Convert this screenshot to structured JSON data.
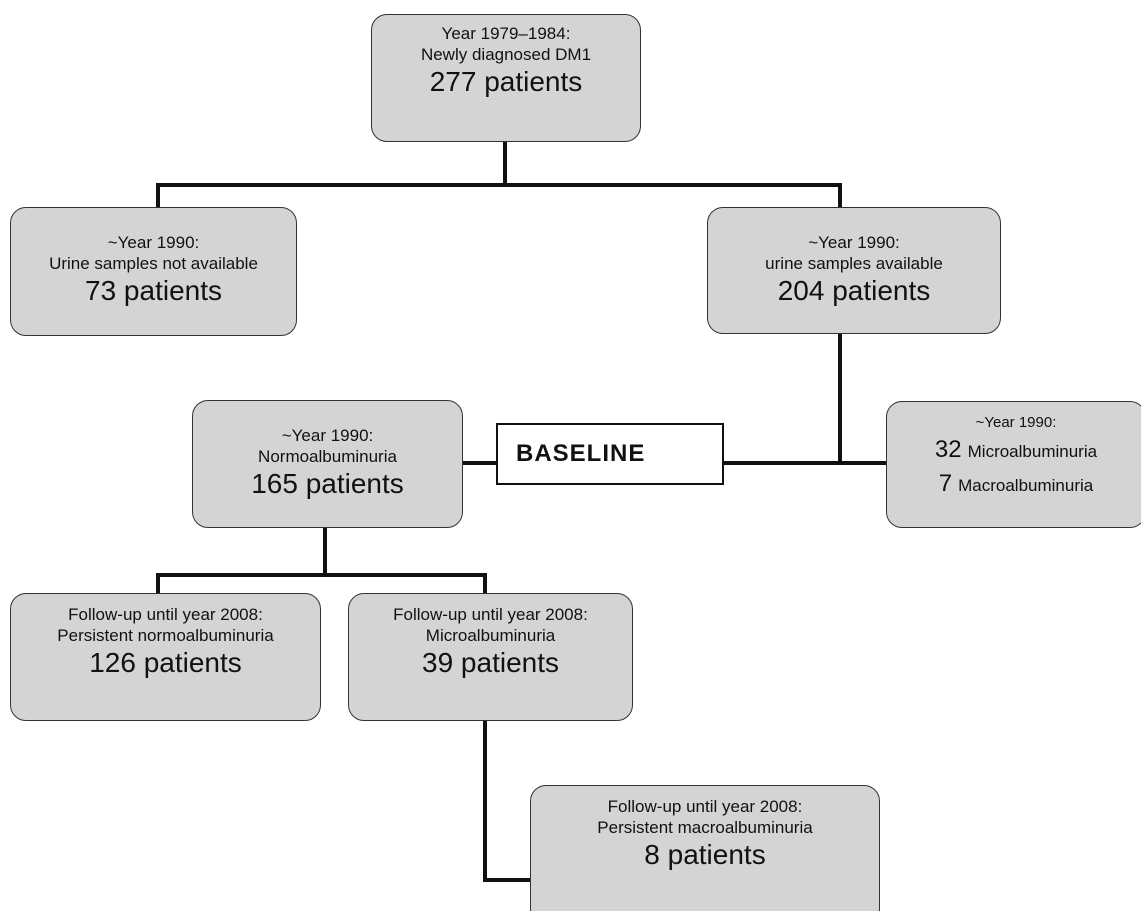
{
  "nodes": [
    {
      "lines": [
        "Year 1979–1984:",
        "Newly diagnosed DM1"
      ],
      "count": "277 patients"
    },
    {
      "lines": [
        "~Year 1990:",
        "Urine samples not available"
      ],
      "count": "73 patients"
    },
    {
      "lines": [
        "~Year 1990:",
        "urine samples available"
      ],
      "count": "204 patients"
    },
    {
      "lines": [
        "~Year 1990:",
        "Normoalbuminuria"
      ],
      "count": "165 patients"
    },
    {
      "label": "BASELINE"
    },
    {
      "lines": [
        "~Year 1990:"
      ],
      "items": [
        {
          "count": "32",
          "label": "Microalbuminuria"
        },
        {
          "count": "7",
          "label": "Macroalbuminuria"
        }
      ]
    },
    {
      "lines": [
        "Follow-up until year 2008:",
        "Persistent normoalbuminuria"
      ],
      "count": "126 patients"
    },
    {
      "lines": [
        "Follow-up until year 2008:",
        "Microalbuminuria"
      ],
      "count": "39 patients"
    },
    {
      "lines": [
        "Follow-up until year 2008:",
        "Persistent macroalbuminuria"
      ],
      "count": "8 patients"
    }
  ]
}
